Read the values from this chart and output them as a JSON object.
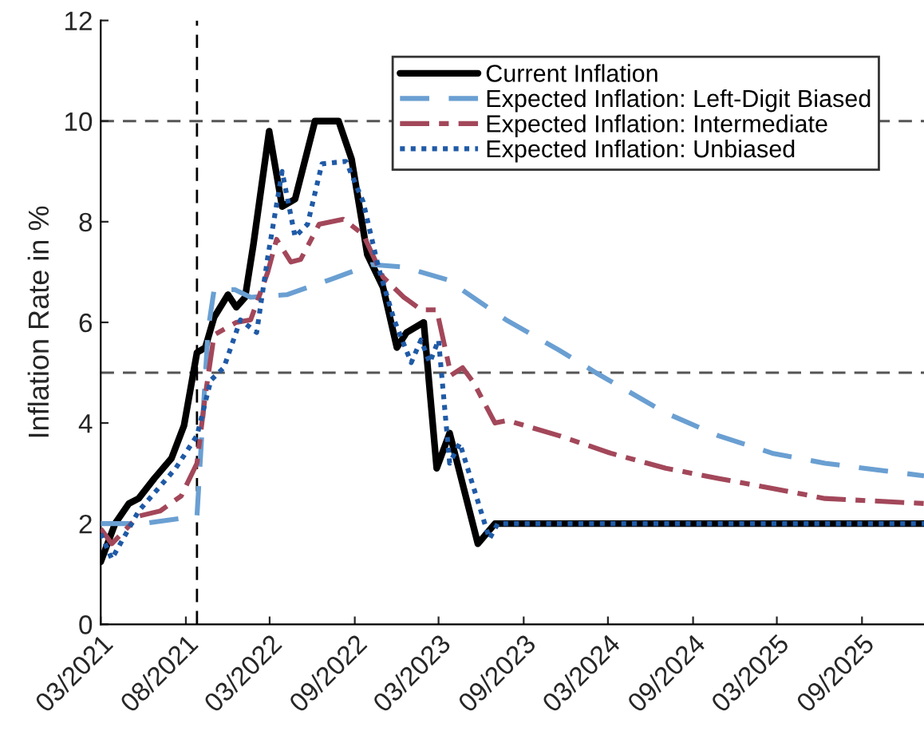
{
  "chart_data": {
    "type": "line",
    "ylabel": "Inflation Rate in %",
    "xlim": [
      "2021-03-01",
      "2026-01-13"
    ],
    "ylim": [
      0,
      12
    ],
    "yticks": [
      0,
      2,
      4,
      6,
      8,
      10,
      12
    ],
    "xticks": [
      {
        "value": "2021-03-01",
        "label": "03/2021"
      },
      {
        "value": "2021-09-01",
        "label": "08/2021"
      },
      {
        "value": "2022-03-01",
        "label": "03/2022"
      },
      {
        "value": "2022-09-01",
        "label": "09/2022"
      },
      {
        "value": "2023-03-01",
        "label": "03/2023"
      },
      {
        "value": "2023-09-01",
        "label": "09/2023"
      },
      {
        "value": "2024-03-01",
        "label": "03/2024"
      },
      {
        "value": "2024-09-01",
        "label": "09/2024"
      },
      {
        "value": "2025-03-01",
        "label": "03/2025"
      },
      {
        "value": "2025-09-01",
        "label": "09/2025"
      }
    ],
    "legend": "top right",
    "grid": false,
    "ref_lines": [
      {
        "axis": "y",
        "value": 10,
        "color": "#555555",
        "line_style": "dashed"
      },
      {
        "axis": "y",
        "value": 5,
        "color": "#555555",
        "line_style": "dashed"
      },
      {
        "axis": "x",
        "value": "2021-09-25",
        "color": "#000000",
        "line_style": "dashed"
      }
    ],
    "series": [
      {
        "name": "Current Inflation",
        "color": "#000000",
        "line_style": "solid",
        "x": [
          "2021-03-01",
          "2021-04-01",
          "2021-05-01",
          "2021-05-22",
          "2021-06-25",
          "2021-08-01",
          "2021-08-28",
          "2021-09-25",
          "2021-10-13",
          "2021-11-01",
          "2021-12-01",
          "2021-12-19",
          "2022-01-07",
          "2022-01-25",
          "2022-02-28",
          "2022-03-28",
          "2022-04-25",
          "2022-06-07",
          "2022-07-28",
          "2022-08-25",
          "2022-09-28",
          "2022-11-01",
          "2022-12-01",
          "2022-12-22",
          "2023-01-28",
          "2023-02-25",
          "2023-03-25",
          "2023-05-25",
          "2023-07-01",
          "2026-01-13"
        ],
        "values": [
          1.24,
          2.0,
          2.4,
          2.5,
          2.9,
          3.3,
          3.95,
          5.4,
          5.5,
          6.1,
          6.55,
          6.3,
          6.5,
          7.55,
          9.8,
          8.3,
          8.45,
          10.0,
          10.0,
          9.25,
          7.35,
          6.7,
          5.5,
          5.8,
          6.0,
          3.1,
          3.8,
          1.6,
          2.0,
          2.0
        ]
      },
      {
        "name": "Expected Inflation: Left-Digit Biased",
        "color": "#6a9fd2",
        "line_style": "dashed",
        "x": [
          "2021-03-01",
          "2021-06-01",
          "2021-09-25",
          "2021-10-19",
          "2021-11-01",
          "2021-12-16",
          "2022-01-19",
          "2022-04-07",
          "2022-07-10",
          "2022-10-07",
          "2022-12-16",
          "2023-03-19",
          "2023-07-25",
          "2023-11-16",
          "2024-02-04",
          "2024-07-04",
          "2024-10-25",
          "2025-02-19",
          "2025-06-13",
          "2026-01-13"
        ],
        "values": [
          2.0,
          2.0,
          2.15,
          5.85,
          6.65,
          6.65,
          6.5,
          6.55,
          6.85,
          7.15,
          7.1,
          6.85,
          6.05,
          5.45,
          5.0,
          4.2,
          3.75,
          3.4,
          3.2,
          2.95
        ]
      },
      {
        "name": "Expected Inflation: Intermediate",
        "color": "#a3475a",
        "line_style": "dashdot",
        "x": [
          "2021-03-01",
          "2021-03-25",
          "2021-05-22",
          "2021-07-07",
          "2021-08-22",
          "2021-09-25",
          "2021-10-13",
          "2021-11-01",
          "2021-12-19",
          "2022-01-19",
          "2022-02-25",
          "2022-03-16",
          "2022-04-16",
          "2022-05-07",
          "2022-06-16",
          "2022-08-07",
          "2022-09-19",
          "2022-11-01",
          "2022-12-16",
          "2023-01-22",
          "2023-02-25",
          "2023-03-28",
          "2023-04-22",
          "2023-05-16",
          "2023-07-01",
          "2023-07-28",
          "2023-11-16",
          "2024-03-07",
          "2024-07-04",
          "2024-10-25",
          "2025-02-19",
          "2025-06-13",
          "2026-01-13"
        ],
        "values": [
          1.9,
          1.6,
          2.15,
          2.25,
          2.55,
          3.2,
          4.55,
          5.75,
          6.0,
          6.05,
          7.0,
          7.65,
          7.2,
          7.25,
          7.95,
          8.05,
          7.75,
          6.9,
          6.5,
          6.25,
          6.25,
          4.95,
          5.1,
          4.8,
          4.0,
          4.05,
          3.75,
          3.4,
          3.1,
          2.9,
          2.7,
          2.5,
          2.4
        ]
      },
      {
        "name": "Expected Inflation: Unbiased",
        "color": "#1f5aa6",
        "line_style": "dotted",
        "x": [
          "2021-03-01",
          "2021-03-25",
          "2021-05-22",
          "2021-08-10",
          "2021-09-25",
          "2021-10-25",
          "2021-11-22",
          "2021-12-28",
          "2022-02-01",
          "2022-02-25",
          "2022-03-28",
          "2022-04-25",
          "2022-05-22",
          "2022-06-22",
          "2022-08-13",
          "2022-09-19",
          "2022-10-22",
          "2022-11-25",
          "2023-01-01",
          "2023-01-22",
          "2023-02-10",
          "2023-03-01",
          "2023-03-25",
          "2023-04-16",
          "2023-06-19",
          "2023-07-07",
          "2026-01-13"
        ],
        "values": [
          1.8,
          1.3,
          2.25,
          3.1,
          3.75,
          4.85,
          5.1,
          6.05,
          5.8,
          7.3,
          9.0,
          7.7,
          7.95,
          9.15,
          9.2,
          8.4,
          7.1,
          6.05,
          5.2,
          5.65,
          5.2,
          5.65,
          3.2,
          3.6,
          1.7,
          2.0,
          2.0
        ]
      }
    ]
  }
}
